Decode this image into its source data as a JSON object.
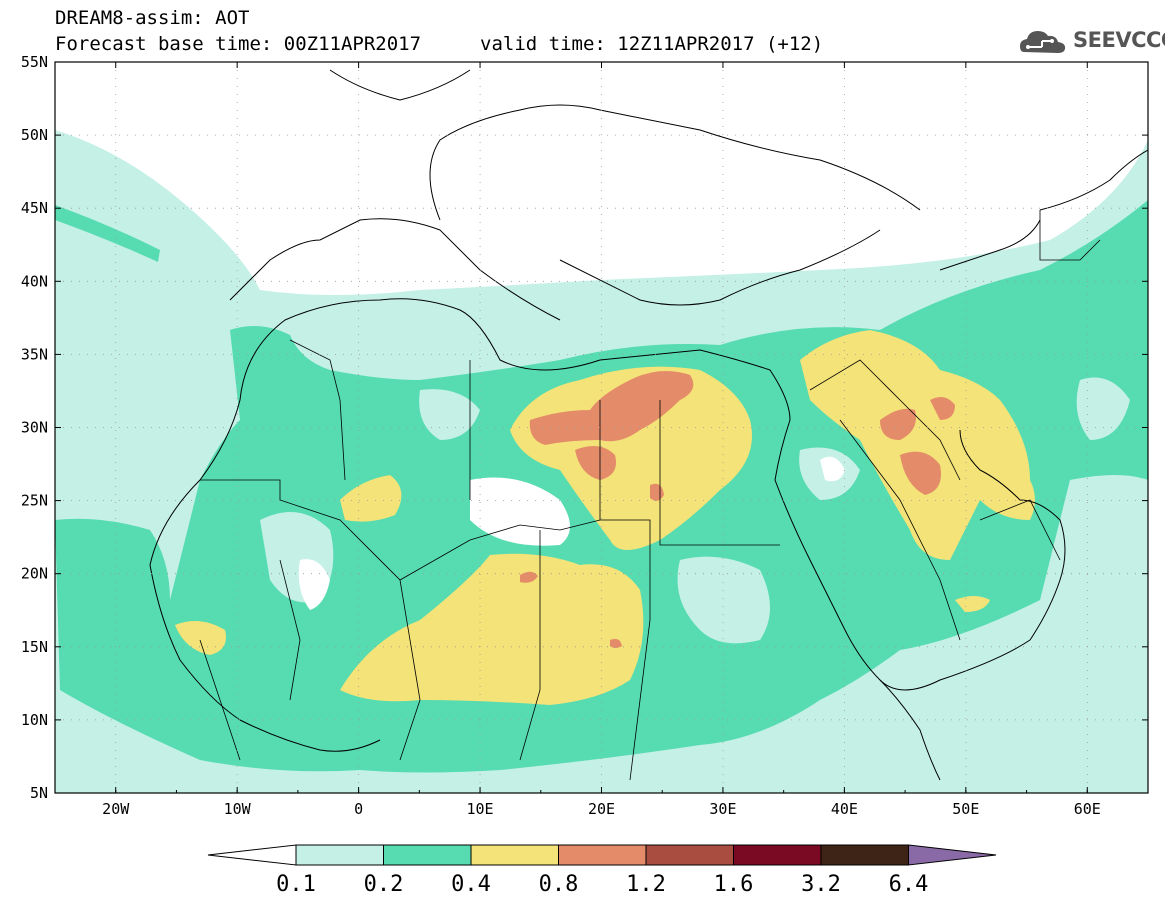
{
  "header": {
    "model_line": "DREAM8-assim: AOT",
    "base_time": "Forecast base time: 00Z11APR2017",
    "valid_time": "valid time: 12Z11APR2017 (+12)",
    "logo_text": "SEEVCCC"
  },
  "axes": {
    "lat_labels": [
      "55N",
      "50N",
      "45N",
      "40N",
      "35N",
      "30N",
      "25N",
      "20N",
      "15N",
      "10N",
      "5N"
    ],
    "lon_labels": [
      "20W",
      "10W",
      "0",
      "10E",
      "20E",
      "30E",
      "40E",
      "50E",
      "60E"
    ],
    "lon_range": [
      -25,
      65
    ],
    "lat_range": [
      5,
      55
    ]
  },
  "colorbar": {
    "labels": [
      "0.1",
      "0.2",
      "0.4",
      "0.8",
      "1.2",
      "1.6",
      "3.2",
      "6.4"
    ],
    "colors": [
      "#ffffff",
      "#c4f0e6",
      "#56dcb0",
      "#f4e378",
      "#e48c6a",
      "#a84d40",
      "#7a0a24",
      "#3e2417",
      "#8a6aa6"
    ]
  },
  "colors": {
    "aot_0_1": "#c4f0e6",
    "aot_0_2": "#56dcb0",
    "aot_0_4": "#f4e378",
    "aot_0_8": "#e48c6a"
  }
}
